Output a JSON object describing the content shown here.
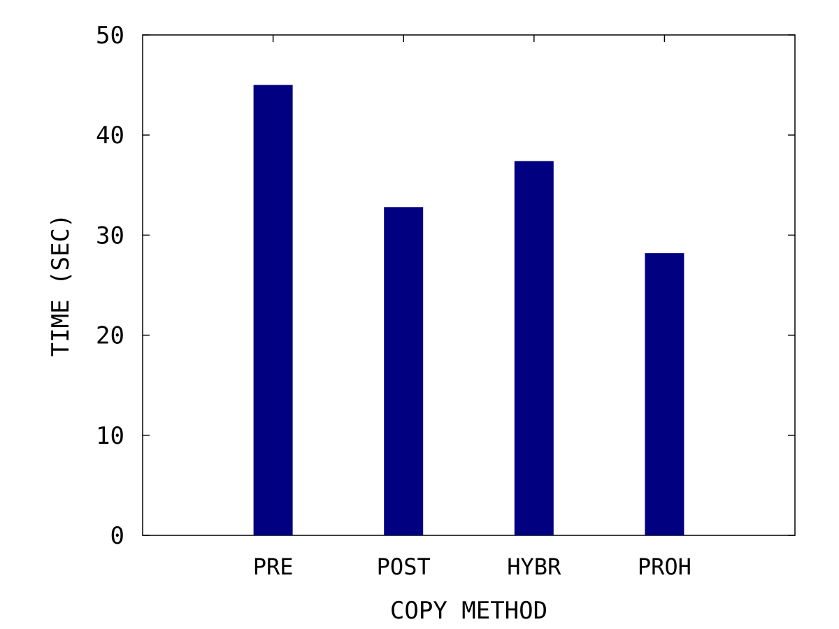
{
  "chart_data": {
    "type": "bar",
    "categories": [
      "PRE",
      "POST",
      "HYBR",
      "PROH"
    ],
    "values": [
      45.0,
      32.8,
      37.4,
      28.2
    ],
    "title": "",
    "xlabel": "COPY METHOD",
    "ylabel": "TIME (SEC)",
    "ylim": [
      0,
      50
    ],
    "yticks": [
      0,
      10,
      20,
      30,
      40,
      50
    ],
    "grid": false,
    "legend": "none",
    "bar_color": "#000080",
    "axis_color": "#000000"
  }
}
